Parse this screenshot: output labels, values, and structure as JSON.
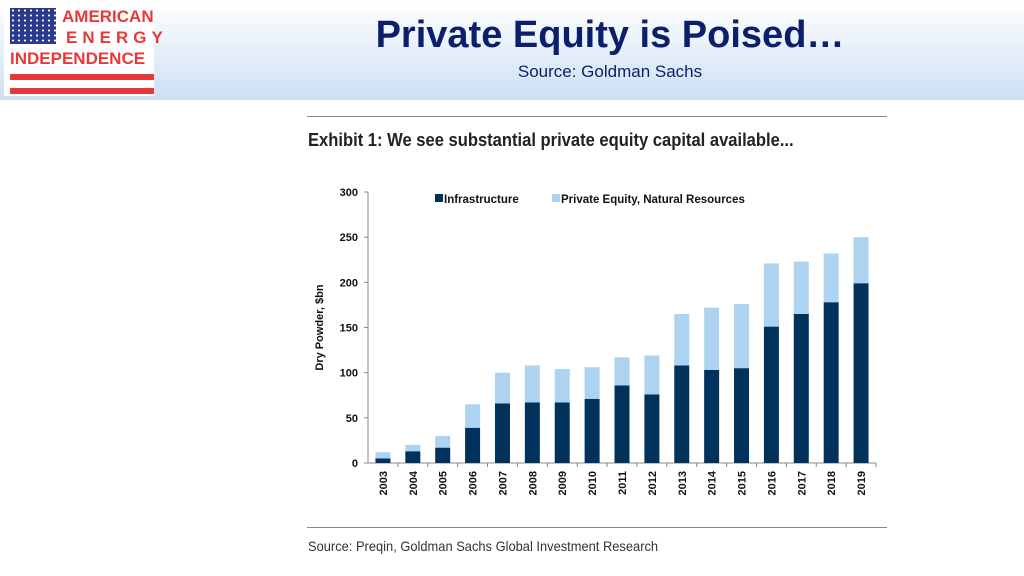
{
  "header": {
    "title": "Private Equity is Poised…",
    "subtitle": "Source: Goldman Sachs"
  },
  "logo": {
    "line1": "AMERICAN",
    "line2": "ENERGY",
    "line3": "INDEPENDENCE",
    "colors": {
      "red": "#e63a3a",
      "blue": "#2b3a8c"
    }
  },
  "exhibit_title": "Exhibit 1: We see substantial private equity capital available...",
  "source_note": "Source: Preqin, Goldman Sachs Global Investment Research",
  "chart_data": {
    "type": "bar",
    "stacked": true,
    "ylabel": "Dry Powder, $bn",
    "ylim": [
      0,
      300
    ],
    "yticks": [
      0,
      50,
      100,
      150,
      200,
      250,
      300
    ],
    "legend_position": "top",
    "grid": false,
    "categories": [
      "2003",
      "2004",
      "2005",
      "2006",
      "2007",
      "2008",
      "2009",
      "2010",
      "2011",
      "2012",
      "2013",
      "2014",
      "2015",
      "2016",
      "2017",
      "2018",
      "2019"
    ],
    "series": [
      {
        "name": "Infrastructure",
        "color": "#00325c",
        "values": [
          5,
          13,
          17,
          39,
          66,
          67,
          67,
          71,
          86,
          76,
          108,
          103,
          105,
          151,
          165,
          178,
          199
        ]
      },
      {
        "name": "Private Equity, Natural Resources",
        "color": "#aed3f0",
        "values": [
          7,
          7,
          13,
          26,
          34,
          41,
          37,
          35,
          31,
          43,
          57,
          69,
          71,
          70,
          58,
          54,
          51
        ]
      }
    ]
  }
}
